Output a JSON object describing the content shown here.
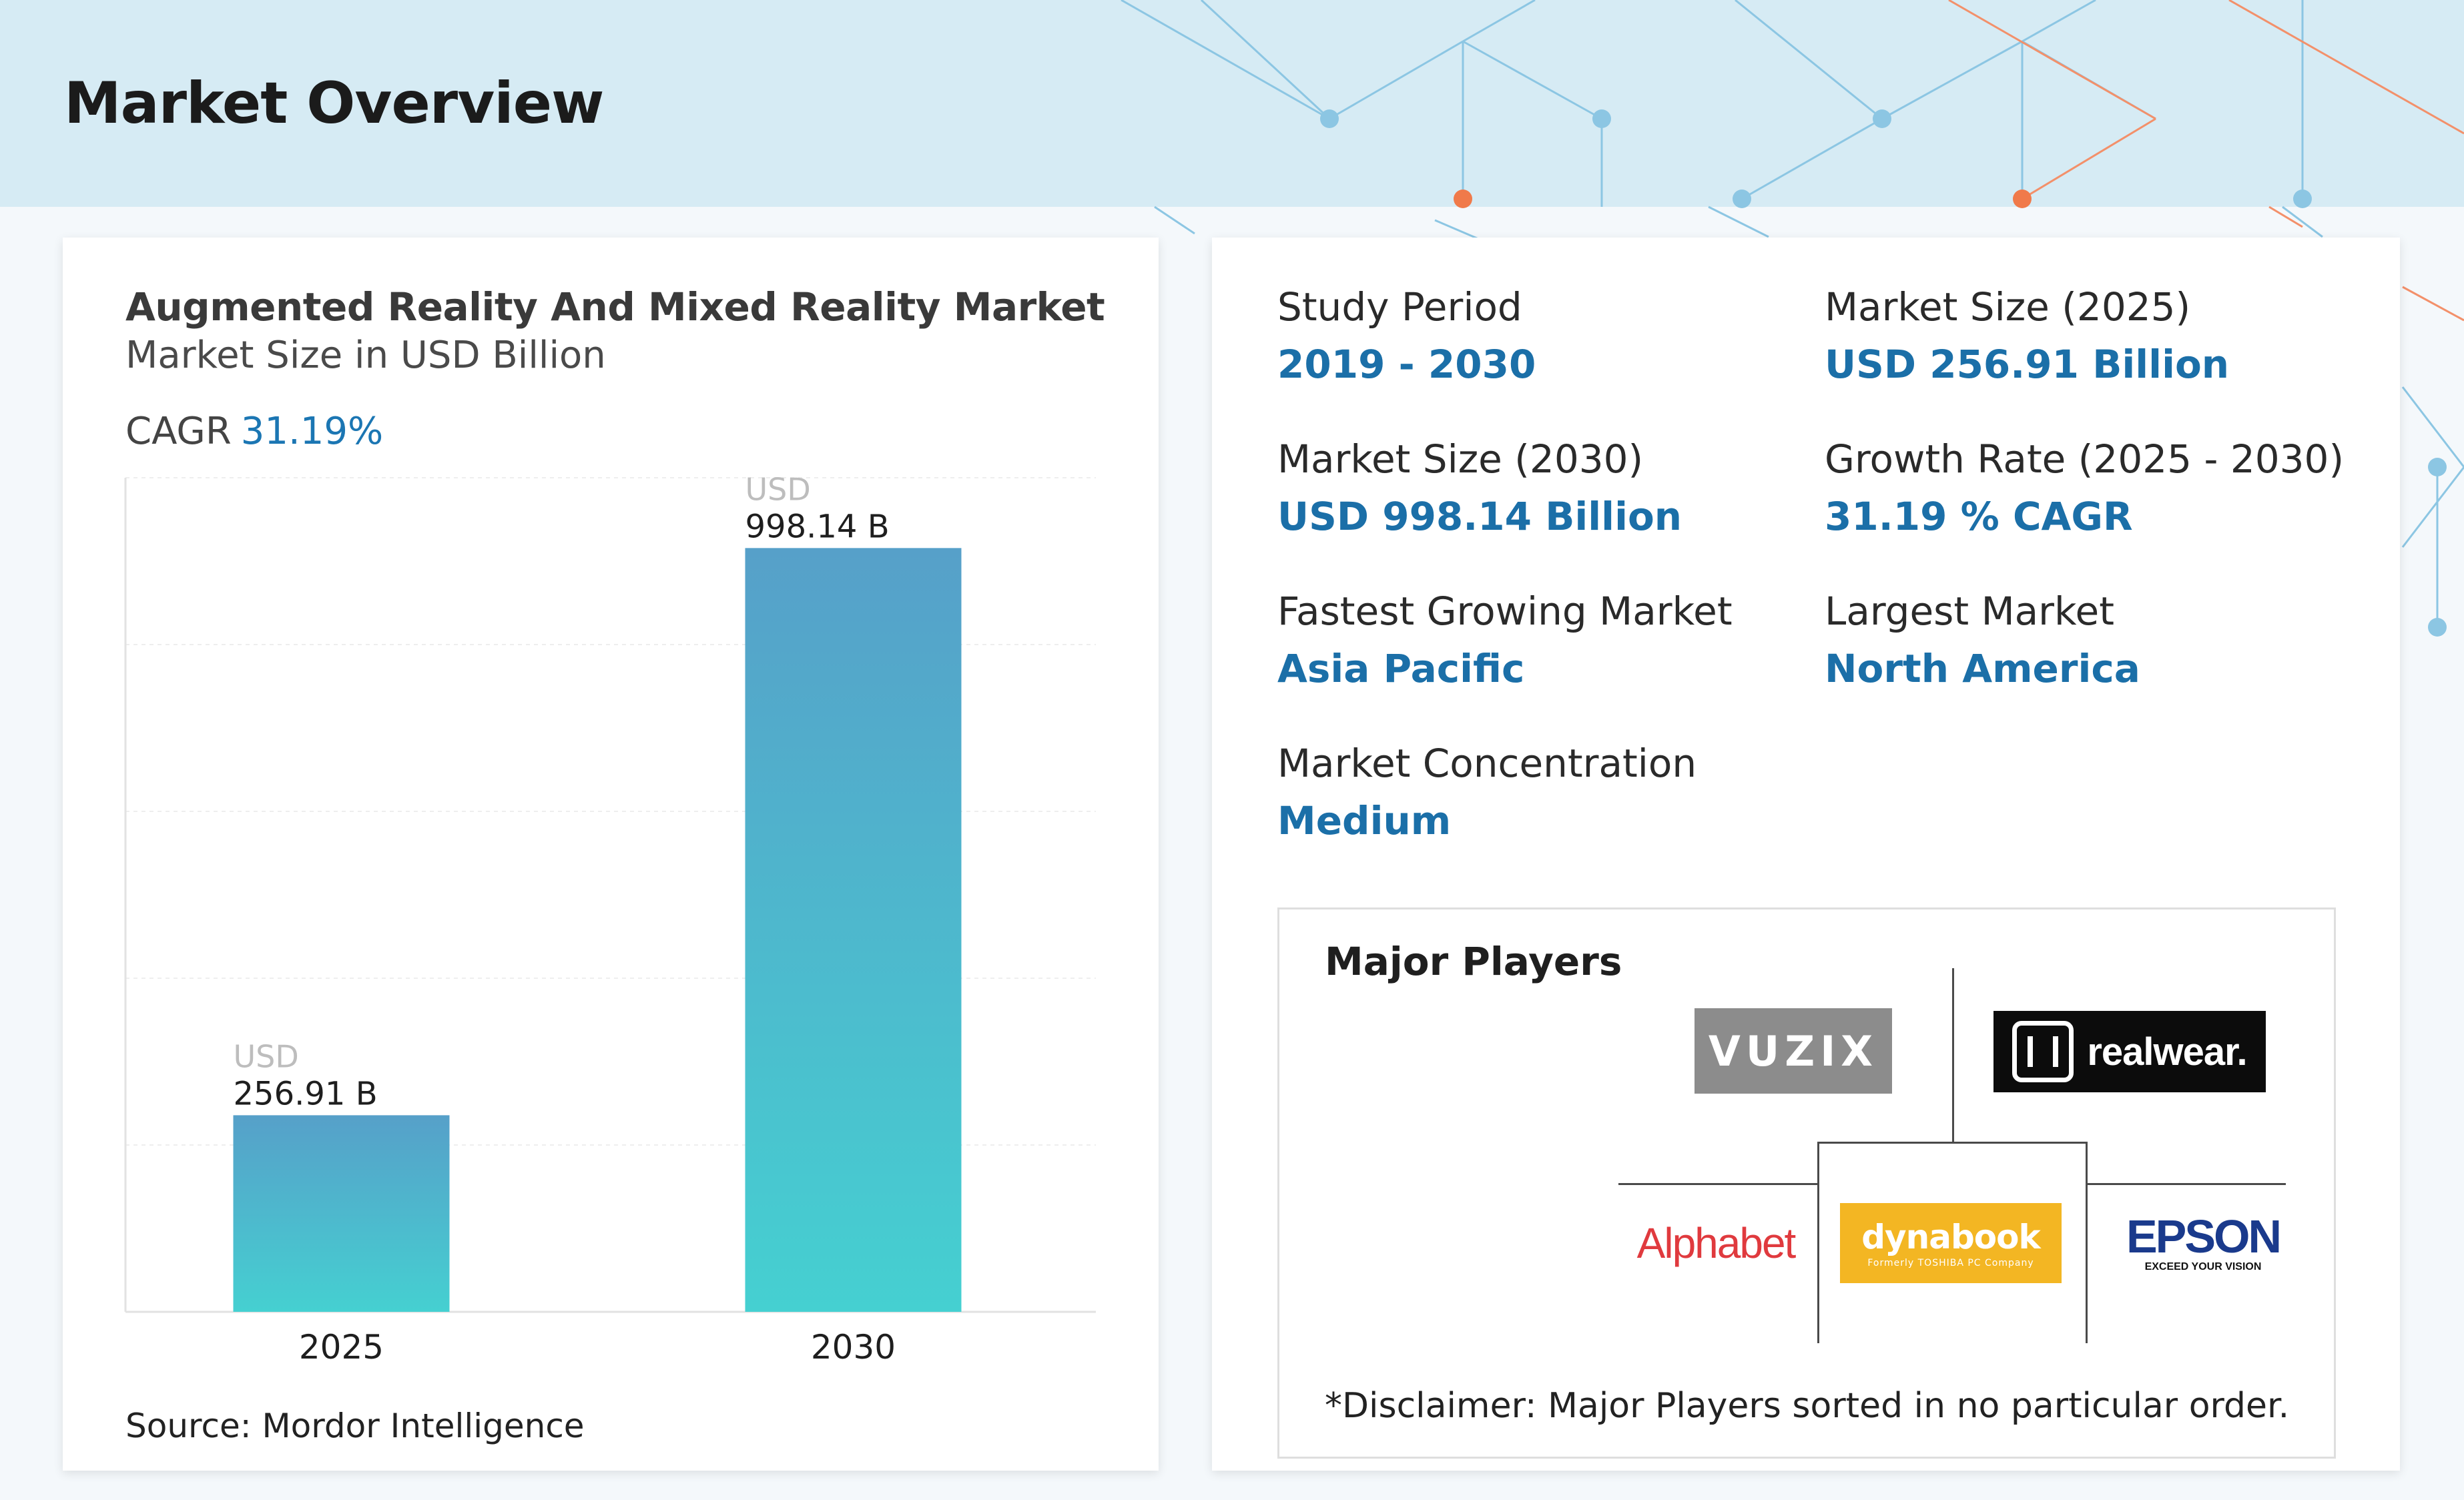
{
  "page": {
    "title": "Market Overview"
  },
  "chart_data": {
    "type": "bar",
    "title": "Augmented Reality And Mixed Reality Market",
    "subtitle": "Market Size in USD Billion",
    "cagr_label": "CAGR",
    "cagr_value": "31.19%",
    "categories": [
      "2025",
      "2030"
    ],
    "values": [
      256.91,
      998.14
    ],
    "value_prefix": "USD",
    "value_labels": [
      "256.91 B",
      "998.14 B"
    ],
    "ylim": [
      0,
      1090
    ],
    "grid": true,
    "bar_color_top": "#56a0c9",
    "bar_color_bottom": "#45d0d1",
    "source": "Source: Mordor Intelligence"
  },
  "stats": [
    {
      "label": "Study Period",
      "value": "2019 - 2030"
    },
    {
      "label": "Market Size (2025)",
      "value": "USD 256.91 Billion"
    },
    {
      "label": "Market Size (2030)",
      "value": "USD 998.14 Billion"
    },
    {
      "label": "Growth Rate (2025 - 2030)",
      "value": "31.19 % CAGR"
    },
    {
      "label": "Fastest Growing Market",
      "value": "Asia Pacific"
    },
    {
      "label": "Largest Market",
      "value": "North America"
    },
    {
      "label": "Market Concentration",
      "value": "Medium"
    }
  ],
  "players": {
    "title": "Major Players",
    "logos": [
      {
        "name": "VUZIX",
        "text": "VUZIX"
      },
      {
        "name": "RealWear",
        "text": "realwear."
      },
      {
        "name": "Alphabet",
        "text": "Alphabet"
      },
      {
        "name": "dynabook",
        "text": "dynabook",
        "tagline": "Formerly TOSHIBA PC Company"
      },
      {
        "name": "EPSON",
        "text": "EPSON",
        "tagline": "EXCEED YOUR VISION"
      }
    ],
    "disclaimer": "*Disclaimer: Major Players sorted in no particular order."
  },
  "colors": {
    "header_band": "#d6ebf4",
    "accent_blue": "#1b6fa8",
    "deco_blue": "#7fc0e0",
    "deco_orange": "#f07a4a"
  }
}
